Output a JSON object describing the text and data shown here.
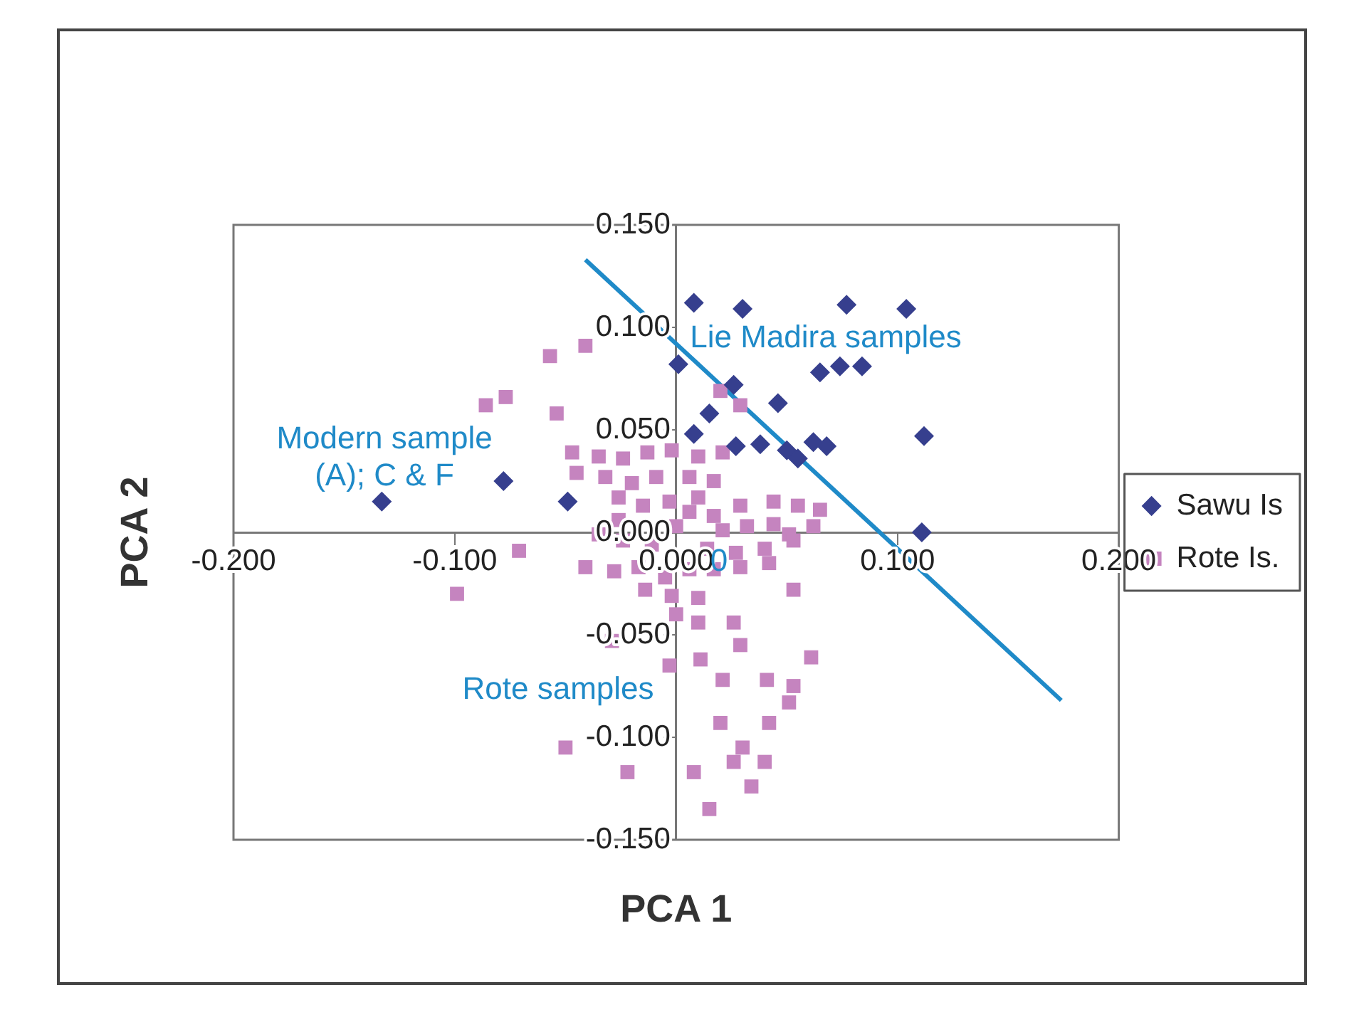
{
  "chart_data": {
    "type": "scatter",
    "xlabel": "PCA 1",
    "ylabel": "PCA 2",
    "xlim": [
      -0.2,
      0.2
    ],
    "ylim": [
      -0.15,
      0.15
    ],
    "xticks": [
      {
        "value": -0.2,
        "label": "-0.200"
      },
      {
        "value": -0.1,
        "label": "-0.100"
      },
      {
        "value": 0,
        "label": "0.000"
      },
      {
        "value": 0.1,
        "label": "0.100"
      },
      {
        "value": 0.2,
        "label": "0.200"
      }
    ],
    "yticks": [
      {
        "value": -0.15,
        "label": "-0.150"
      },
      {
        "value": -0.1,
        "label": "-0.100"
      },
      {
        "value": -0.05,
        "label": "-0.050"
      },
      {
        "value": 0,
        "label": "0.000"
      },
      {
        "value": 0.05,
        "label": "0.050"
      },
      {
        "value": 0.1,
        "label": "0.100"
      },
      {
        "value": 0.15,
        "label": "0.150"
      }
    ],
    "grid": false,
    "legend": "right",
    "series": [
      {
        "name": "Sawu Is",
        "color": "#363f8e",
        "marker": "diamond",
        "x": [
          0.008,
          0.03,
          0.077,
          0.104,
          0.001,
          0.065,
          0.074,
          0.084,
          0.026,
          0.046,
          0.015,
          0.008,
          0.027,
          0.038,
          0.05,
          0.055,
          0.062,
          0.068,
          0.112,
          0.111,
          -0.133,
          -0.078,
          -0.049
        ],
        "values": [
          0.112,
          0.109,
          0.111,
          0.109,
          0.082,
          0.078,
          0.081,
          0.081,
          0.072,
          0.063,
          0.058,
          0.048,
          0.042,
          0.043,
          0.04,
          0.036,
          0.044,
          0.042,
          0.047,
          0.0,
          0.015,
          0.025,
          0.015
        ]
      },
      {
        "name": "Rote Is.",
        "color": "#c584bf",
        "marker": "square",
        "x": [
          -0.047,
          -0.035,
          -0.024,
          -0.013,
          -0.002,
          0.01,
          0.021,
          -0.045,
          -0.032,
          -0.02,
          -0.009,
          0.006,
          0.017,
          -0.026,
          -0.015,
          -0.003,
          0.01,
          -0.026,
          0.0,
          -0.035,
          -0.024,
          -0.011,
          0.006,
          0.017,
          0.029,
          0.044,
          0.055,
          0.065,
          0.021,
          0.032,
          0.044,
          0.051,
          0.014,
          0.027,
          0.04,
          -0.041,
          -0.028,
          -0.017,
          -0.005,
          0.006,
          0.017,
          0.029,
          0.042,
          -0.014,
          -0.002,
          0.01,
          0.0,
          0.053,
          0.062,
          0.029,
          -0.057,
          -0.041,
          -0.086,
          -0.077,
          -0.054,
          -0.071,
          -0.099,
          -0.029,
          -0.003,
          -0.05,
          -0.022,
          0.053,
          0.061,
          0.011,
          0.021,
          0.041,
          0.053,
          0.051,
          0.02,
          0.042,
          0.03,
          0.026,
          0.04,
          0.008,
          0.034,
          0.015,
          0.026,
          0.029,
          0.01,
          0.02
        ],
        "values": [
          0.039,
          0.037,
          0.036,
          0.039,
          0.04,
          0.037,
          0.039,
          0.029,
          0.027,
          0.024,
          0.027,
          0.027,
          0.025,
          0.017,
          0.013,
          0.015,
          0.017,
          0.006,
          0.003,
          -0.001,
          -0.004,
          -0.006,
          0.01,
          0.008,
          0.013,
          0.015,
          0.013,
          0.011,
          0.001,
          0.003,
          0.004,
          -0.001,
          -0.008,
          -0.01,
          -0.008,
          -0.017,
          -0.019,
          -0.017,
          -0.022,
          -0.018,
          -0.018,
          -0.017,
          -0.015,
          -0.028,
          -0.031,
          -0.032,
          -0.04,
          -0.004,
          0.003,
          0.062,
          0.086,
          0.091,
          0.062,
          0.066,
          0.058,
          -0.009,
          -0.03,
          -0.053,
          -0.065,
          -0.105,
          -0.117,
          -0.028,
          -0.061,
          -0.062,
          -0.072,
          -0.072,
          -0.075,
          -0.083,
          -0.093,
          -0.093,
          -0.105,
          -0.112,
          -0.112,
          -0.117,
          -0.124,
          -0.135,
          -0.044,
          -0.055,
          -0.044,
          0.069
        ]
      },
      {
        "type": "line",
        "color": "#1f8ac8",
        "marker": "none",
        "x": [
          -0.041,
          0.174
        ],
        "values": [
          0.133,
          -0.082
        ]
      }
    ],
    "annotations": [
      "Lie Madira samples",
      "Modern sample\n(A); C & F",
      "Rote samples",
      "0"
    ]
  }
}
